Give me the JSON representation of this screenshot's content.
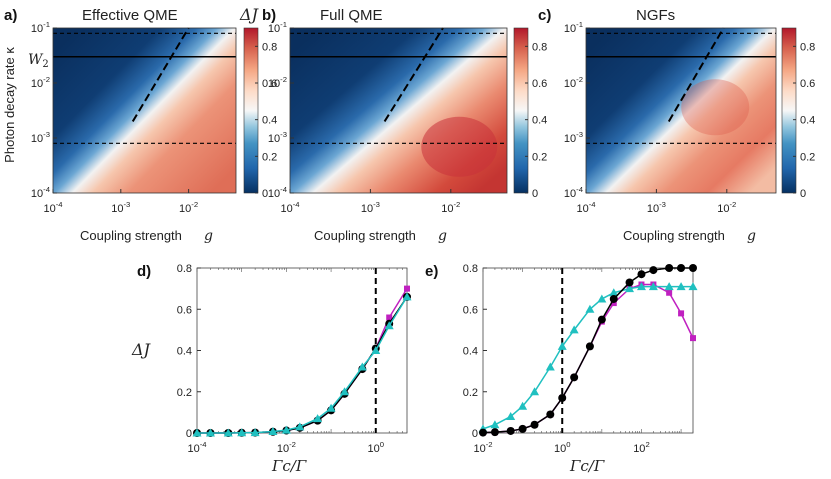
{
  "figure": {
    "colorbar_label": "ΔJ",
    "w2_label": "W2",
    "heatmap_xlabel": "Coupling strength",
    "heatmap_xlabel_var": "g",
    "heatmap_ylabel": "Photon decay rate κ",
    "line_ylabel": "ΔJ",
    "line_xlabel": "Γc/Γ"
  },
  "chart_data": [
    {
      "type": "heatmap",
      "panel": "a)",
      "title": "Effective QME",
      "x_scale": "log",
      "xlim": [
        0.0001,
        0.05
      ],
      "xticks": [
        "10^-4",
        "10^-3",
        "10^-2"
      ],
      "y_scale": "log",
      "ylim": [
        0.0001,
        0.1
      ],
      "yticks": [
        "10^-4",
        "10^-3",
        "10^-2",
        "10^-1"
      ],
      "colorbar": {
        "min": 0,
        "max": 0.9,
        "ticks": [
          "0",
          "0.2",
          "0.4",
          "0.6",
          "0.8"
        ]
      },
      "description_value": "ΔJ rises from ~0 (top-left) to ~0.8 (bottom-right) across the diagonal g²/κ transition",
      "hlines_dashed": [
        0.08,
        0.0008
      ],
      "hline_solid": 0.03,
      "diagonal_dashed": {
        "from": [
          0.0015,
          0.002
        ],
        "to": [
          0.01,
          0.1
        ]
      }
    },
    {
      "type": "heatmap",
      "panel": "b)",
      "title": "Full QME",
      "x_scale": "log",
      "xlim": [
        0.0001,
        0.05
      ],
      "xticks": [
        "10^-4",
        "10^-3",
        "10^-2"
      ],
      "y_scale": "log",
      "ylim": [
        0.0001,
        0.1
      ],
      "yticks": [
        "10^-4",
        "10^-3",
        "10^-2",
        "10^-1"
      ],
      "colorbar": {
        "min": 0,
        "max": 0.9,
        "ticks": [
          "0",
          "0.2",
          "0.4",
          "0.6",
          "0.8"
        ]
      },
      "hlines_dashed": [
        0.08,
        0.0008
      ],
      "hline_solid": 0.03,
      "diagonal_dashed": {
        "from": [
          0.0015,
          0.002
        ],
        "to": [
          0.008,
          0.1
        ]
      }
    },
    {
      "type": "heatmap",
      "panel": "c)",
      "title": "NGFs",
      "x_scale": "log",
      "xlim": [
        0.0001,
        0.05
      ],
      "xticks": [
        "10^-4",
        "10^-3",
        "10^-2"
      ],
      "y_scale": "log",
      "ylim": [
        0.0001,
        0.1
      ],
      "yticks": [
        "10^-4",
        "10^-3",
        "10^-2",
        "10^-1"
      ],
      "colorbar": {
        "min": 0,
        "max": 0.9,
        "ticks": [
          "0",
          "0.2",
          "0.4",
          "0.6",
          "0.8"
        ]
      },
      "hlines_dashed": [
        0.08,
        0.0008
      ],
      "hline_solid": 0.03,
      "diagonal_dashed": {
        "from": [
          0.0015,
          0.002
        ],
        "to": [
          0.009,
          0.1
        ]
      }
    },
    {
      "type": "line",
      "panel": "d)",
      "x_scale": "log",
      "xlim": [
        0.0001,
        5
      ],
      "xticks": [
        "10^-4",
        "10^-2",
        "10^0"
      ],
      "ylim": [
        0,
        0.8
      ],
      "yticks": [
        "0",
        "0.2",
        "0.4",
        "0.6",
        "0.8"
      ],
      "vline_dashed": 1,
      "series": [
        {
          "name": "Effective QME",
          "color": "#000000",
          "marker": "circle",
          "x": [
            0.0001,
            0.0002,
            0.0005,
            0.001,
            0.002,
            0.005,
            0.01,
            0.02,
            0.05,
            0.1,
            0.2,
            0.5,
            1,
            2,
            5
          ],
          "y": [
            0,
            0,
            0,
            0.001,
            0.002,
            0.006,
            0.012,
            0.025,
            0.06,
            0.11,
            0.19,
            0.31,
            0.41,
            0.53,
            0.66
          ]
        },
        {
          "name": "Full QME",
          "color": "#c020c0",
          "marker": "square",
          "x": [
            0.0001,
            0.0002,
            0.0005,
            0.001,
            0.002,
            0.005,
            0.01,
            0.02,
            0.05,
            0.1,
            0.2,
            0.5,
            1,
            2,
            5
          ],
          "y": [
            0,
            0,
            0,
            0.001,
            0.002,
            0.006,
            0.012,
            0.025,
            0.06,
            0.11,
            0.19,
            0.31,
            0.41,
            0.56,
            0.7
          ]
        },
        {
          "name": "NGFs",
          "color": "#20c0c0",
          "marker": "triangle",
          "x": [
            0.0001,
            0.0002,
            0.0005,
            0.001,
            0.002,
            0.005,
            0.01,
            0.02,
            0.05,
            0.1,
            0.2,
            0.5,
            1,
            2,
            5
          ],
          "y": [
            0,
            0,
            0,
            0.001,
            0.002,
            0.007,
            0.014,
            0.03,
            0.07,
            0.12,
            0.2,
            0.32,
            0.4,
            0.52,
            0.66
          ]
        }
      ]
    },
    {
      "type": "line",
      "panel": "e)",
      "x_scale": "log",
      "xlim": [
        0.01,
        2000
      ],
      "xticks": [
        "10^-2",
        "10^0",
        "10^2"
      ],
      "ylim": [
        0,
        0.8
      ],
      "yticks": [
        "0",
        "0.2",
        "0.4",
        "0.6",
        "0.8"
      ],
      "vline_dashed": 1,
      "series": [
        {
          "name": "Effective QME",
          "color": "#000000",
          "marker": "circle",
          "x": [
            0.01,
            0.02,
            0.05,
            0.1,
            0.2,
            0.5,
            1,
            2,
            5,
            10,
            20,
            50,
            100,
            200,
            500,
            1000,
            2000
          ],
          "y": [
            0.002,
            0.004,
            0.01,
            0.02,
            0.04,
            0.09,
            0.17,
            0.27,
            0.42,
            0.55,
            0.65,
            0.73,
            0.77,
            0.79,
            0.8,
            0.8,
            0.8
          ]
        },
        {
          "name": "Full QME",
          "color": "#c020c0",
          "marker": "square",
          "x": [
            0.01,
            0.02,
            0.05,
            0.1,
            0.2,
            0.5,
            1,
            2,
            5,
            10,
            20,
            50,
            100,
            200,
            500,
            1000,
            2000
          ],
          "y": [
            0.002,
            0.004,
            0.01,
            0.02,
            0.04,
            0.09,
            0.17,
            0.27,
            0.42,
            0.54,
            0.63,
            0.7,
            0.72,
            0.72,
            0.68,
            0.58,
            0.46
          ]
        },
        {
          "name": "NGFs",
          "color": "#20c0c0",
          "marker": "triangle",
          "x": [
            0.01,
            0.02,
            0.05,
            0.1,
            0.2,
            0.5,
            1,
            2,
            5,
            10,
            20,
            50,
            100,
            200,
            500,
            1000,
            2000
          ],
          "y": [
            0.02,
            0.04,
            0.08,
            0.13,
            0.2,
            0.32,
            0.42,
            0.5,
            0.6,
            0.65,
            0.68,
            0.7,
            0.71,
            0.71,
            0.71,
            0.71,
            0.71
          ]
        }
      ]
    }
  ]
}
